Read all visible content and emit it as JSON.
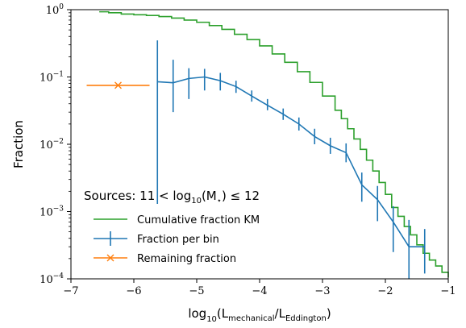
{
  "chart_data": {
    "type": "line",
    "xlabel": "log10(L_mechanical/L_Eddington)",
    "ylabel": "Fraction",
    "xlim": [
      -7,
      -1
    ],
    "ylim": [
      0.0001,
      1
    ],
    "yscale": "log",
    "x_ticks": [
      -7,
      -6,
      -5,
      -4,
      -3,
      -2,
      -1
    ],
    "x_tick_labels": [
      "−7",
      "−6",
      "−5",
      "−4",
      "−3",
      "−2",
      "−1"
    ],
    "y_ticks": [
      0.0001,
      0.001,
      0.01,
      0.1,
      1
    ],
    "y_tick_base": "10",
    "y_tick_exponents": [
      "−4",
      "−3",
      "−2",
      "−1",
      "0"
    ],
    "grid": false,
    "legend": {
      "placement": "lower-left",
      "title": "Sources: 11 < log10(M⋆) ≤ 12",
      "title_parts": {
        "prefix": "Sources:",
        "lhs": "11 < log",
        "sub": "10",
        "paren_open": "(M",
        "star": "⋆",
        "rhs": ") ≤ 12"
      }
    },
    "series": [
      {
        "name": "Cumulative fraction KM",
        "color": "#2ca02c",
        "style": "step",
        "x": [
          -6.55,
          -6.4,
          -6.2,
          -6.0,
          -5.8,
          -5.6,
          -5.4,
          -5.2,
          -5.0,
          -4.8,
          -4.6,
          -4.4,
          -4.2,
          -4.0,
          -3.8,
          -3.6,
          -3.4,
          -3.2,
          -3.0,
          -2.8,
          -2.7,
          -2.6,
          -2.5,
          -2.4,
          -2.3,
          -2.2,
          -2.1,
          -2.0,
          -1.9,
          -1.8,
          -1.7,
          -1.6,
          -1.5,
          -1.4,
          -1.3,
          -1.2,
          -1.1,
          -1.0
        ],
        "y": [
          0.93,
          0.9,
          0.86,
          0.84,
          0.82,
          0.79,
          0.75,
          0.7,
          0.65,
          0.58,
          0.51,
          0.43,
          0.36,
          0.29,
          0.22,
          0.165,
          0.12,
          0.083,
          0.052,
          0.032,
          0.024,
          0.017,
          0.012,
          0.0084,
          0.0058,
          0.004,
          0.0027,
          0.0018,
          0.00115,
          0.00085,
          0.0006,
          0.00045,
          0.00032,
          0.00024,
          0.00019,
          0.000155,
          0.000125,
          0.000105
        ]
      },
      {
        "name": "Fraction per bin",
        "color": "#1f77b4",
        "style": "errorbar",
        "x": [
          -5.625,
          -5.375,
          -5.125,
          -4.875,
          -4.625,
          -4.375,
          -4.125,
          -3.875,
          -3.625,
          -3.375,
          -3.125,
          -2.875,
          -2.625,
          -2.375,
          -2.125,
          -1.875,
          -1.625,
          -1.375
        ],
        "y": [
          0.085,
          0.082,
          0.095,
          0.1,
          0.088,
          0.072,
          0.052,
          0.038,
          0.028,
          0.02,
          0.013,
          0.0095,
          0.0075,
          0.0025,
          0.0015,
          0.0007,
          0.0003,
          0.0003
        ],
        "y_low": [
          0.0013,
          0.03,
          0.047,
          0.063,
          0.063,
          0.058,
          0.043,
          0.032,
          0.023,
          0.016,
          0.01,
          0.0072,
          0.0054,
          0.0014,
          0.00072,
          0.00025,
          0.0001,
          0.00012
        ],
        "y_high": [
          0.35,
          0.18,
          0.135,
          0.132,
          0.115,
          0.088,
          0.063,
          0.047,
          0.034,
          0.025,
          0.017,
          0.0125,
          0.0103,
          0.0038,
          0.0024,
          0.0012,
          0.00075,
          0.00055
        ]
      },
      {
        "name": "Remaining fraction",
        "color": "#ff7f0e",
        "style": "x-marker",
        "x": [
          -6.25
        ],
        "y": [
          0.075
        ],
        "x_low": [
          -6.75
        ],
        "x_high": [
          -5.75
        ]
      }
    ]
  }
}
